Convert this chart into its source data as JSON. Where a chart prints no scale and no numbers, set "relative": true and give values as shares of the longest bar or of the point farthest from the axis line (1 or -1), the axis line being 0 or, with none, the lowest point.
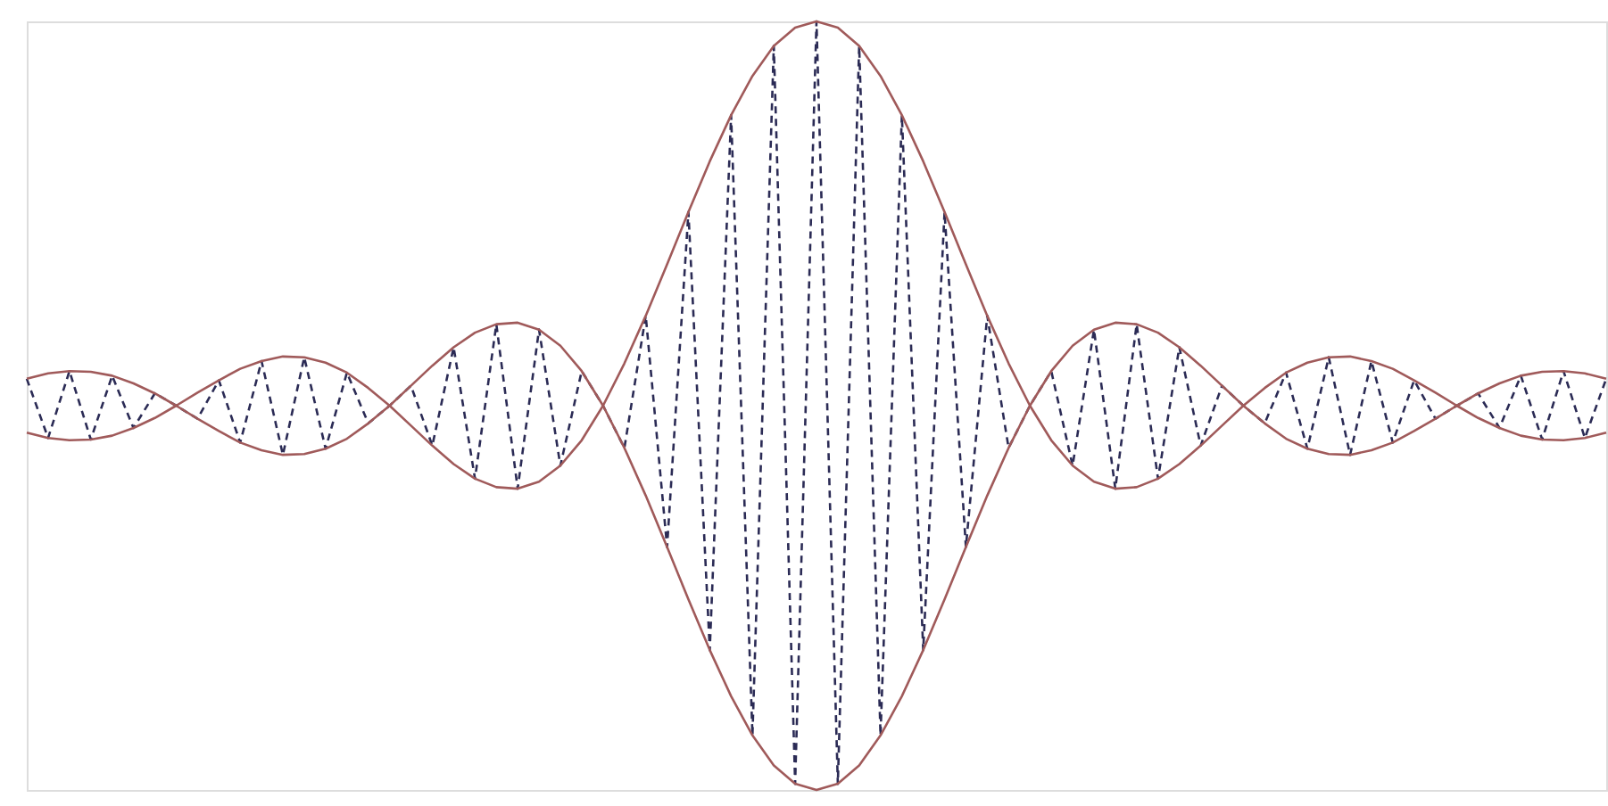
{
  "chart_data": {
    "type": "line",
    "relative": true,
    "categories": [
      null,
      null,
      null,
      null,
      null,
      null,
      null,
      null,
      null,
      null,
      null,
      null,
      null,
      null,
      null,
      null,
      null,
      null,
      null,
      null,
      null,
      null,
      null,
      null,
      null,
      null,
      null,
      null,
      null,
      null,
      null,
      null,
      null,
      null,
      null,
      null,
      null,
      null,
      null,
      null,
      null,
      null,
      null,
      null,
      null,
      null,
      null,
      null,
      null,
      null,
      null,
      null,
      null,
      null,
      null,
      null,
      null,
      null,
      null,
      null,
      null,
      null,
      null,
      null,
      null,
      null,
      null,
      null,
      null,
      null,
      null,
      null,
      null,
      null,
      null
    ],
    "series": [
      {
        "color": "#2b2b55",
        "line_style": "dashed",
        "values": [
          0.535,
          0.458,
          0.545,
          0.456,
          0.539,
          0.471,
          0.516,
          0.5,
          0.483,
          0.533,
          0.452,
          0.558,
          0.436,
          0.563,
          0.444,
          0.543,
          0.477,
          0.5,
          0.526,
          0.448,
          0.576,
          0.405,
          0.606,
          0.392,
          0.599,
          0.422,
          0.545,
          0.5,
          0.445,
          0.617,
          0.316,
          0.752,
          0.182,
          0.878,
          0.071,
          0.968,
          0.008,
          1.0,
          0.008,
          0.968,
          0.071,
          0.878,
          0.182,
          0.752,
          0.316,
          0.617,
          0.445,
          0.5,
          0.545,
          0.422,
          0.599,
          0.392,
          0.606,
          0.405,
          0.576,
          0.448,
          0.526,
          0.5,
          0.477,
          0.543,
          0.444,
          0.563,
          0.436,
          0.558,
          0.452,
          0.533,
          0.483,
          0.5,
          0.516,
          0.471,
          0.539,
          0.456,
          0.545,
          0.458,
          0.535
        ]
      },
      {
        "color": "#a05a5a",
        "line_style": "solid",
        "values": [
          0.465,
          0.458,
          0.455,
          0.456,
          0.461,
          0.471,
          0.484,
          0.5,
          0.517,
          0.533,
          0.548,
          0.558,
          0.564,
          0.563,
          0.556,
          0.543,
          0.523,
          0.5,
          0.474,
          0.448,
          0.424,
          0.405,
          0.394,
          0.392,
          0.401,
          0.422,
          0.455,
          0.5,
          0.555,
          0.617,
          0.684,
          0.752,
          0.818,
          0.878,
          0.929,
          0.968,
          0.992,
          1.0,
          0.992,
          0.968,
          0.929,
          0.878,
          0.818,
          0.752,
          0.684,
          0.617,
          0.555,
          0.5,
          0.455,
          0.422,
          0.401,
          0.392,
          0.394,
          0.405,
          0.424,
          0.448,
          0.474,
          0.5,
          0.523,
          0.543,
          0.556,
          0.563,
          0.564,
          0.558,
          0.548,
          0.533,
          0.517,
          0.5,
          0.484,
          0.471,
          0.461,
          0.456,
          0.455,
          0.458,
          0.465
        ]
      },
      {
        "color": "#a05a5a",
        "line_style": "solid",
        "values": [
          0.535,
          0.542,
          0.545,
          0.544,
          0.539,
          0.529,
          0.516,
          0.5,
          0.483,
          0.467,
          0.452,
          0.442,
          0.436,
          0.437,
          0.444,
          0.457,
          0.477,
          0.5,
          0.526,
          0.552,
          0.576,
          0.595,
          0.606,
          0.608,
          0.599,
          0.578,
          0.545,
          0.5,
          0.445,
          0.383,
          0.316,
          0.248,
          0.182,
          0.122,
          0.071,
          0.032,
          0.008,
          0.0,
          0.008,
          0.032,
          0.071,
          0.122,
          0.182,
          0.248,
          0.316,
          0.383,
          0.445,
          0.5,
          0.545,
          0.578,
          0.599,
          0.608,
          0.606,
          0.595,
          0.576,
          0.552,
          0.526,
          0.5,
          0.477,
          0.457,
          0.444,
          0.437,
          0.436,
          0.442,
          0.452,
          0.467,
          0.483,
          0.5,
          0.516,
          0.529,
          0.539,
          0.544,
          0.545,
          0.542,
          0.535
        ]
      }
    ]
  }
}
